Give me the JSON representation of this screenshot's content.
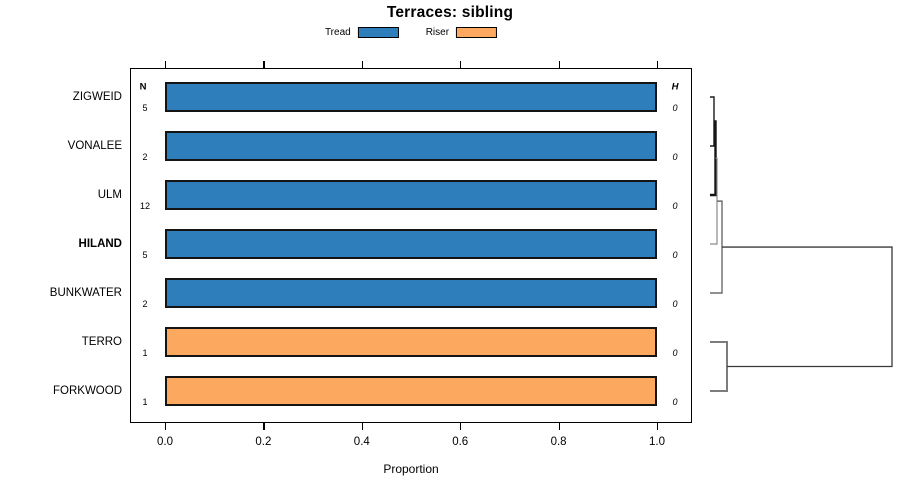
{
  "title": "Terraces: sibling",
  "legend": {
    "items": [
      {
        "label": "Tread",
        "color": "#2E7EBC"
      },
      {
        "label": "Riser",
        "color": "#FCA85F"
      }
    ]
  },
  "chart_data": {
    "type": "bar",
    "orientation": "horizontal",
    "title": "Terraces: sibling",
    "xlabel": "Proportion",
    "xlim": [
      0.0,
      1.0
    ],
    "x_ticks": [
      "0.0",
      "0.2",
      "0.4",
      "0.6",
      "0.8",
      "1.0"
    ],
    "x_tick_values": [
      0.0,
      0.2,
      0.4,
      0.6,
      0.8,
      1.0
    ],
    "grid": false,
    "legend_position": "top",
    "columns": {
      "left_header": "N",
      "right_header": "H"
    },
    "groups": {
      "Tread": "#2E7EBC",
      "Riser": "#FCA85F"
    },
    "rows": [
      {
        "label": "ZIGWEID",
        "n": "5",
        "proportion": 1.0,
        "group": "Tread",
        "h": "0",
        "bold": false
      },
      {
        "label": "VONALEE",
        "n": "2",
        "proportion": 1.0,
        "group": "Tread",
        "h": "0",
        "bold": false
      },
      {
        "label": "ULM",
        "n": "12",
        "proportion": 1.0,
        "group": "Tread",
        "h": "0",
        "bold": false
      },
      {
        "label": "HILAND",
        "n": "5",
        "proportion": 1.0,
        "group": "Tread",
        "h": "0",
        "bold": true
      },
      {
        "label": "BUNKWATER",
        "n": "2",
        "proportion": 1.0,
        "group": "Tread",
        "h": "0",
        "bold": false
      },
      {
        "label": "TERRO",
        "n": "1",
        "proportion": 1.0,
        "group": "Riser",
        "h": "0",
        "bold": false
      },
      {
        "label": "FORKWOOD",
        "n": "1",
        "proportion": 1.0,
        "group": "Riser",
        "h": "0",
        "bold": false
      }
    ],
    "dendrogram": {
      "side": "right",
      "merges": [
        {
          "a": "ZIGWEID",
          "b": "VONALEE",
          "height": 0
        },
        {
          "a": "merge0",
          "b": "ULM",
          "height": 0
        },
        {
          "a": "merge1",
          "b": "HILAND",
          "height": 0
        },
        {
          "a": "merge2",
          "b": "BUNKWATER",
          "height": 0
        },
        {
          "a": "TERRO",
          "b": "FORKWOOD",
          "height": 0
        },
        {
          "a": "merge3",
          "b": "merge4",
          "height": 1
        }
      ]
    }
  }
}
